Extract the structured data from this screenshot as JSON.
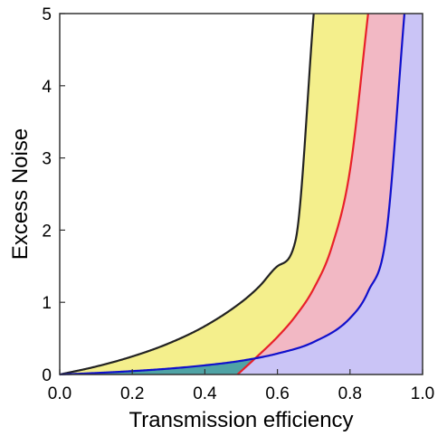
{
  "chart_data": {
    "type": "area",
    "title": "",
    "xlabel": "Transmission efficiency",
    "ylabel": "Excess Noise",
    "xlim": [
      0,
      1
    ],
    "ylim": [
      0,
      5
    ],
    "xticks": [
      "0.0",
      "0.2",
      "0.4",
      "0.6",
      "0.8",
      "1.0"
    ],
    "yticks": [
      "0",
      "1",
      "2",
      "3",
      "4",
      "5"
    ],
    "grid": false,
    "legend": "none",
    "curves": [
      {
        "color": "#222222",
        "x": [
          0,
          0.1,
          0.2,
          0.3,
          0.4,
          0.5,
          0.55,
          0.6,
          0.65,
          0.7
        ],
        "y": [
          0,
          0.11,
          0.25,
          0.43,
          0.67,
          1.0,
          1.22,
          1.5,
          1.86,
          5.0
        ]
      },
      {
        "color": "#e8202a",
        "x": [
          0.49,
          0.54,
          0.6,
          0.65,
          0.7,
          0.75,
          0.8,
          0.85
        ],
        "y": [
          0,
          0.23,
          0.52,
          0.81,
          1.19,
          1.77,
          2.83,
          5.0
        ]
      },
      {
        "color": "#1010cc",
        "x": [
          0,
          0.1,
          0.2,
          0.3,
          0.4,
          0.5,
          0.6,
          0.7,
          0.8,
          0.85,
          0.9,
          0.95
        ],
        "y": [
          0,
          0.021,
          0.047,
          0.081,
          0.127,
          0.19,
          0.29,
          0.45,
          0.78,
          1.15,
          1.94,
          5.0
        ]
      }
    ],
    "regions": [
      {
        "name": "yellow",
        "color": "#f4ef8c"
      },
      {
        "name": "pink",
        "color": "#f2b8c4"
      },
      {
        "name": "lavender",
        "color": "#cac4f6"
      },
      {
        "name": "teal",
        "color": "#4fa3a5"
      }
    ]
  }
}
